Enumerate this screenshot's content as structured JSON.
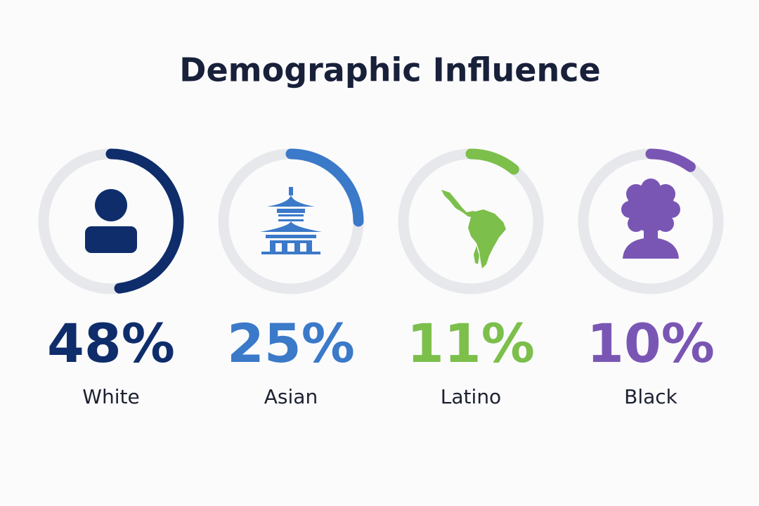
{
  "chart_data": {
    "type": "gauge",
    "title": "Demographic Influence",
    "categories": [
      "White",
      "Asian",
      "Latino",
      "Black"
    ],
    "values": [
      48,
      25,
      11,
      10
    ],
    "value_labels": [
      "48%",
      "25%",
      "11%",
      "10%"
    ],
    "colors": [
      "#0f2d6b",
      "#3b79c9",
      "#7cbf4b",
      "#7a56b4"
    ],
    "ylim": [
      0,
      100
    ]
  }
}
